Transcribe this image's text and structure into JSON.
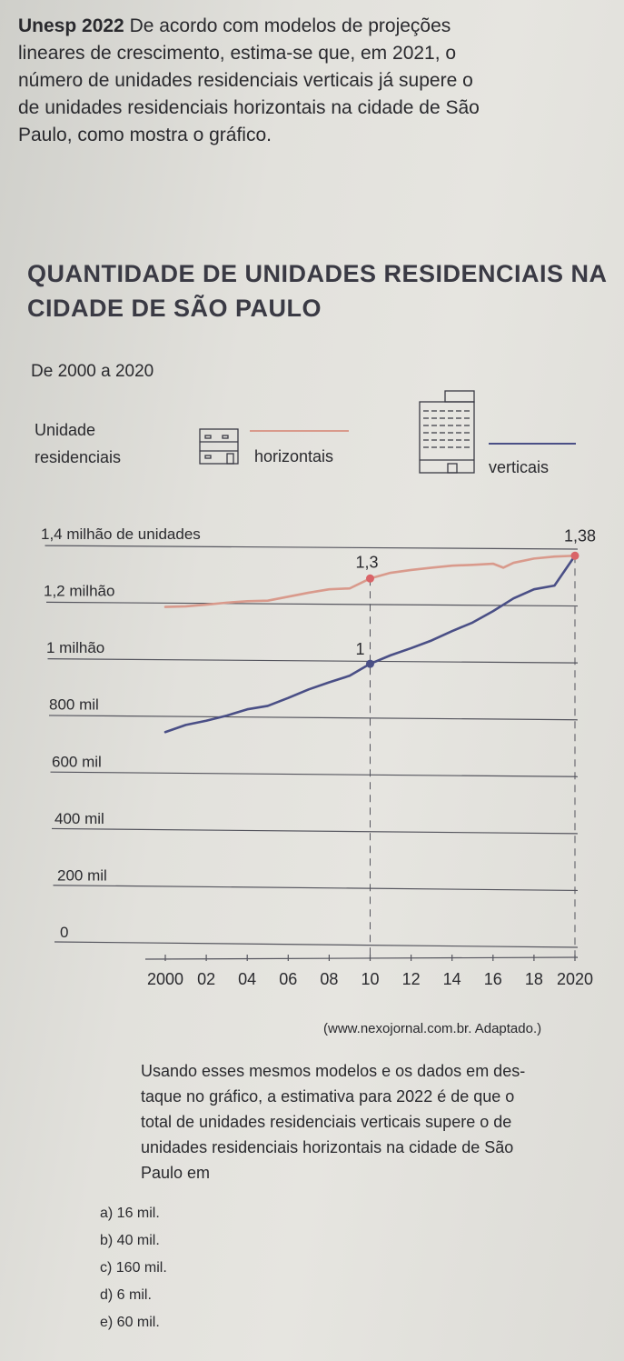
{
  "intro": {
    "bold": "Unesp 2022",
    "lines": [
      "De acordo com modelos de projeções",
      "lineares de crescimento, estima-se que, em 2021, o",
      "número de unidades residenciais verticais já supere o",
      "de unidades residenciais horizontais na cidade de São",
      "Paulo, como mostra o gráfico."
    ]
  },
  "chart_title_lines": [
    "QUANTIDADE DE UNIDADES RESIDENCIAIS NA",
    "CIDADE DE SÃO PAULO"
  ],
  "subtitle": "De 2000 a 2020",
  "legend": {
    "label_line1": "Unidade",
    "label_line2": "residenciais",
    "horizontal": "horizontais",
    "vertical": "verticais",
    "horizontal_color": "#d99a8c",
    "vertical_color": "#4a4f86"
  },
  "chart_data": {
    "type": "line",
    "title": "Quantidade de unidades residenciais na cidade de São Paulo",
    "subtitle": "De 2000 a 2020",
    "x_tick_labels": [
      "2000",
      "02",
      "04",
      "06",
      "08",
      "10",
      "12",
      "14",
      "16",
      "18",
      "2020"
    ],
    "y_tick_labels": [
      "0",
      "200 mil",
      "400 mil",
      "600 mil",
      "800 mil",
      "1 milhão",
      "1,2 milhão",
      "1,4 milhão de unidades"
    ],
    "y_ticks": [
      0,
      200000,
      400000,
      600000,
      800000,
      1000000,
      1200000,
      1400000
    ],
    "ylim": [
      0,
      1400000
    ],
    "xlim": [
      2000,
      2020
    ],
    "series": [
      {
        "name": "horizontais",
        "color": "#d99a8c",
        "x": [
          2000,
          2001,
          2002,
          2003,
          2004,
          2005,
          2006,
          2007,
          2008,
          2009,
          2010,
          2011,
          2012,
          2013,
          2014,
          2015,
          2016,
          2016.5,
          2017,
          2018,
          2019,
          2020
        ],
        "y": [
          1200000,
          1202000,
          1208000,
          1215000,
          1220000,
          1222000,
          1236000,
          1250000,
          1262000,
          1265000,
          1300000,
          1320000,
          1330000,
          1338000,
          1345000,
          1348000,
          1352000,
          1338000,
          1355000,
          1370000,
          1377000,
          1380000
        ]
      },
      {
        "name": "verticais",
        "color": "#4a4f86",
        "x": [
          2000,
          2001,
          2002,
          2003,
          2004,
          2005,
          2006,
          2007,
          2008,
          2009,
          2010,
          2011,
          2012,
          2013,
          2014,
          2015,
          2016,
          2017,
          2018,
          2019,
          2020
        ],
        "y": [
          760000,
          785000,
          800000,
          818000,
          840000,
          852000,
          880000,
          910000,
          935000,
          958000,
          1000000,
          1030000,
          1055000,
          1082000,
          1115000,
          1145000,
          1185000,
          1230000,
          1262000,
          1275000,
          1380000
        ]
      }
    ],
    "annotations": [
      {
        "text": "1,3",
        "x": 2010,
        "y": 1300000
      },
      {
        "text": "1",
        "x": 2010,
        "y": 1000000
      },
      {
        "text": "1,38",
        "x": 2020,
        "y": 1380000
      }
    ],
    "source": "(www.nexojornal.com.br. Adaptado.)",
    "grid": true,
    "legend_position": "top"
  },
  "question": {
    "lines": [
      "Usando esses mesmos modelos e os dados em des-",
      "taque no gráfico, a estimativa para 2022 é de que o",
      "total de unidades residenciais verticais supere o de",
      "unidades residenciais horizontais na cidade de São",
      "Paulo em"
    ],
    "options": [
      "a) 16 mil.",
      "b) 40 mil.",
      "c) 160 mil.",
      "d) 6 mil.",
      "e) 60 mil."
    ]
  }
}
